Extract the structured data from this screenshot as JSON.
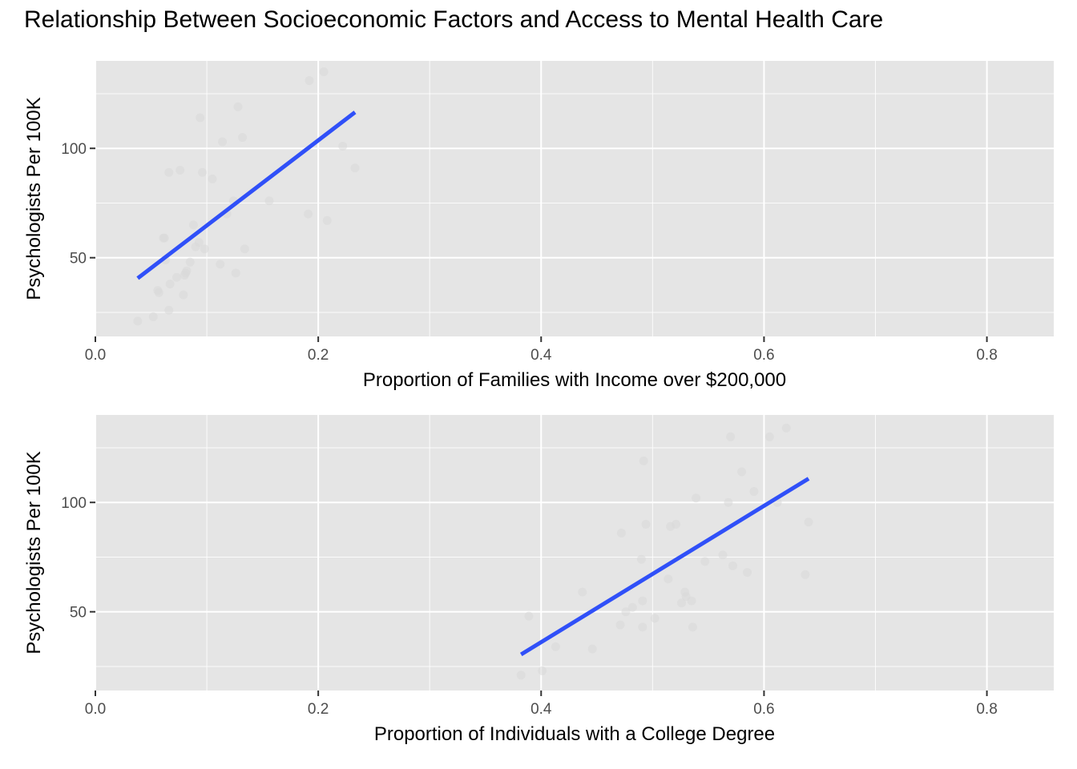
{
  "title": "Relationship Between Socioeconomic Factors and Access to Mental Health Care",
  "chart_data": [
    {
      "type": "scatter",
      "xlabel": "Proportion of Families with Income over $200,000",
      "ylabel": "Psychologists Per 100K",
      "xlim": [
        0.0,
        0.86
      ],
      "ylim": [
        14,
        140
      ],
      "x_ticks": [
        0.0,
        0.2,
        0.4,
        0.6,
        0.8
      ],
      "x_tick_labels": [
        "0.0",
        "0.2",
        "0.4",
        "0.6",
        "0.8"
      ],
      "y_ticks": [
        50,
        100
      ],
      "y_tick_labels": [
        "50",
        "100"
      ],
      "grid": true,
      "points": [
        [
          0.038,
          21
        ],
        [
          0.052,
          23
        ],
        [
          0.056,
          35
        ],
        [
          0.057,
          34
        ],
        [
          0.061,
          59
        ],
        [
          0.062,
          59
        ],
        [
          0.063,
          49
        ],
        [
          0.066,
          26
        ],
        [
          0.066,
          89
        ],
        [
          0.067,
          38
        ],
        [
          0.073,
          41
        ],
        [
          0.076,
          90
        ],
        [
          0.079,
          33
        ],
        [
          0.08,
          42
        ],
        [
          0.081,
          43
        ],
        [
          0.082,
          44
        ],
        [
          0.085,
          48
        ],
        [
          0.088,
          65
        ],
        [
          0.09,
          55
        ],
        [
          0.093,
          57
        ],
        [
          0.094,
          114
        ],
        [
          0.096,
          89
        ],
        [
          0.098,
          54
        ],
        [
          0.105,
          86
        ],
        [
          0.112,
          47
        ],
        [
          0.114,
          103
        ],
        [
          0.118,
          70
        ],
        [
          0.124,
          76
        ],
        [
          0.126,
          43
        ],
        [
          0.128,
          119
        ],
        [
          0.132,
          105
        ],
        [
          0.134,
          54
        ],
        [
          0.156,
          76
        ],
        [
          0.191,
          70
        ],
        [
          0.192,
          131
        ],
        [
          0.205,
          135
        ],
        [
          0.208,
          67
        ],
        [
          0.222,
          101
        ],
        [
          0.233,
          91
        ]
      ],
      "fit_line": {
        "x": [
          0.038,
          0.233
        ],
        "y": [
          40.6,
          116.5
        ],
        "color": "#3050f8"
      }
    },
    {
      "type": "scatter",
      "xlabel": "Proportion of Individuals with a College Degree",
      "ylabel": "Psychologists Per 100K",
      "xlim": [
        0.0,
        0.86
      ],
      "ylim": [
        14,
        140
      ],
      "x_ticks": [
        0.0,
        0.2,
        0.4,
        0.6,
        0.8
      ],
      "x_tick_labels": [
        "0.0",
        "0.2",
        "0.4",
        "0.6",
        "0.8"
      ],
      "y_ticks": [
        50,
        100
      ],
      "y_tick_labels": [
        "50",
        "100"
      ],
      "grid": true,
      "points": [
        [
          0.382,
          21
        ],
        [
          0.389,
          48
        ],
        [
          0.401,
          23
        ],
        [
          0.413,
          34
        ],
        [
          0.437,
          59
        ],
        [
          0.446,
          33
        ],
        [
          0.471,
          44
        ],
        [
          0.472,
          86
        ],
        [
          0.476,
          50
        ],
        [
          0.482,
          52
        ],
        [
          0.49,
          74
        ],
        [
          0.491,
          55
        ],
        [
          0.491,
          43
        ],
        [
          0.492,
          119
        ],
        [
          0.494,
          90
        ],
        [
          0.502,
          47
        ],
        [
          0.514,
          65
        ],
        [
          0.516,
          89
        ],
        [
          0.521,
          90
        ],
        [
          0.526,
          54
        ],
        [
          0.529,
          59
        ],
        [
          0.53,
          57
        ],
        [
          0.535,
          55
        ],
        [
          0.536,
          43
        ],
        [
          0.539,
          102
        ],
        [
          0.547,
          73
        ],
        [
          0.563,
          76
        ],
        [
          0.568,
          100
        ],
        [
          0.57,
          130
        ],
        [
          0.572,
          71
        ],
        [
          0.58,
          114
        ],
        [
          0.585,
          68
        ],
        [
          0.591,
          105
        ],
        [
          0.605,
          130
        ],
        [
          0.612,
          100
        ],
        [
          0.62,
          134
        ],
        [
          0.637,
          67
        ],
        [
          0.64,
          91
        ]
      ],
      "fit_line": {
        "x": [
          0.382,
          0.64
        ],
        "y": [
          30.5,
          110.9
        ],
        "color": "#3050f8"
      }
    }
  ]
}
